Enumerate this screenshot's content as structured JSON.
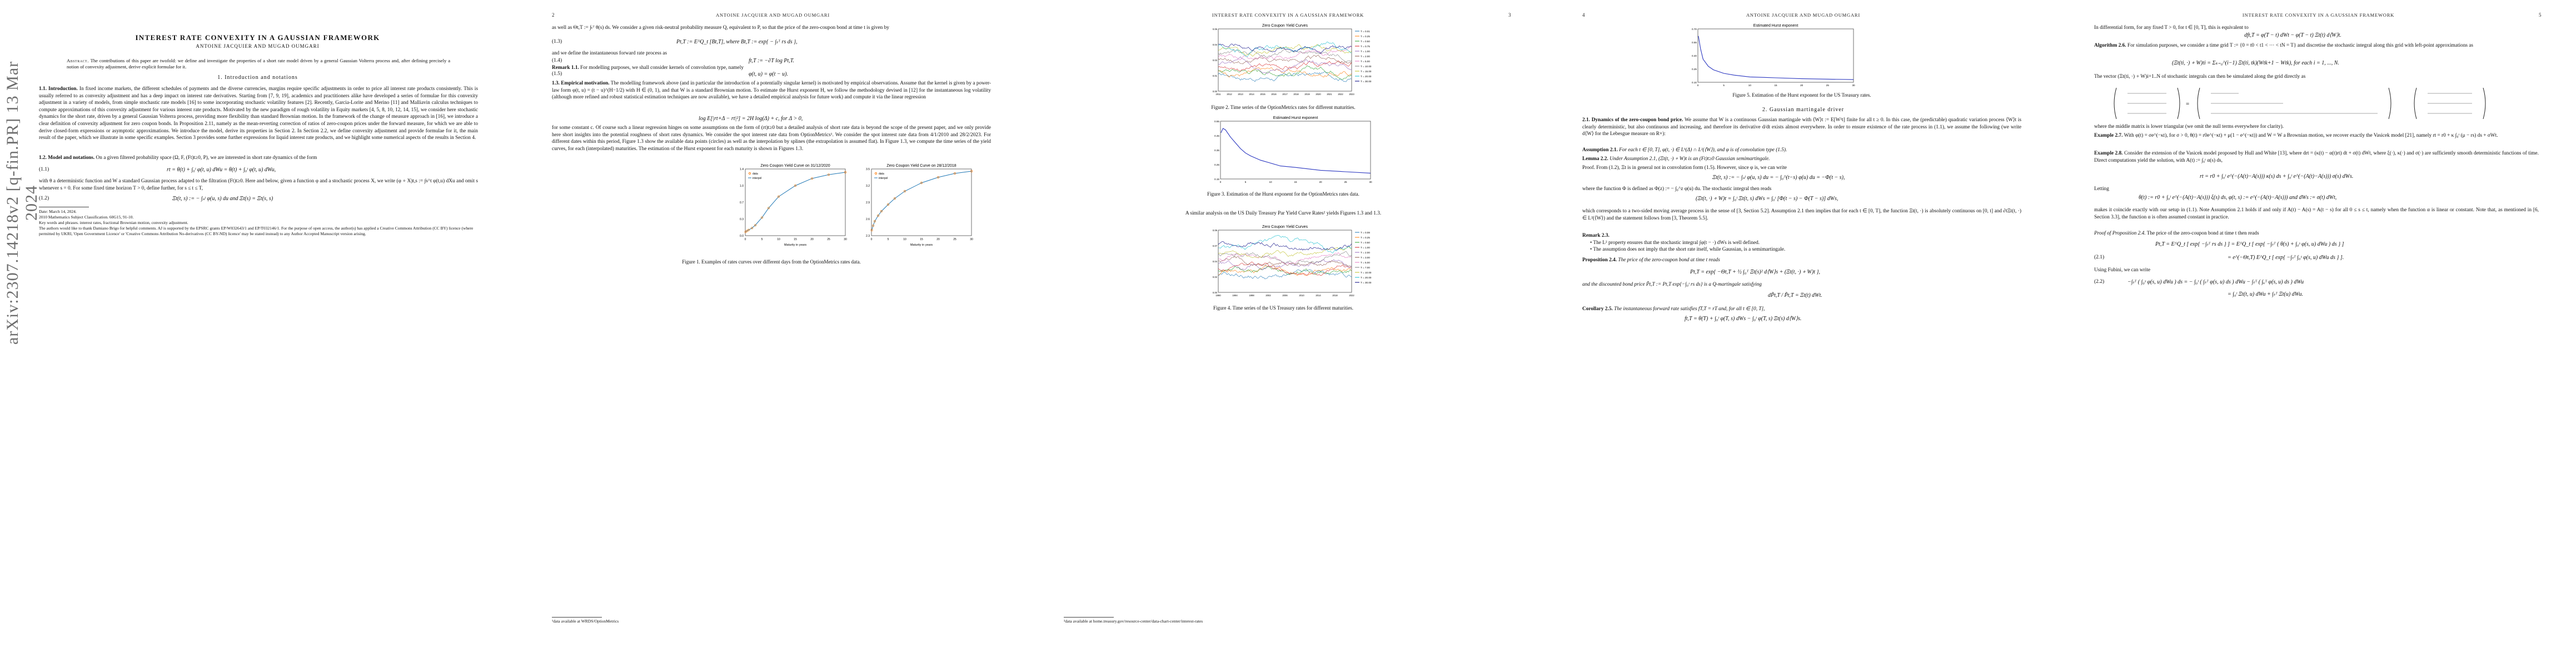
{
  "arxiv_id": "arXiv:2307.14218v2  [q-fin.PR]  13 Mar 2024",
  "running_head": {
    "even": "ANTOINE JACQUIER AND MUGAD OUMGARI",
    "odd": "INTEREST RATE CONVEXITY IN A GAUSSIAN FRAMEWORK"
  },
  "page_numbers": [
    "2",
    "3",
    "4",
    "5"
  ],
  "page1": {
    "title": "INTEREST RATE CONVEXITY IN A GAUSSIAN FRAMEWORK",
    "authors": "ANTOINE JACQUIER AND MUGAD OUMGARI",
    "abstract_label": "Abstract.",
    "abstract": "The contributions of this paper are twofold: we define and investigate the properties of a short rate model driven by a general Gaussian Volterra process and, after defining precisely a notion of convexity adjustment, derive explicit formulae for it.",
    "section1": "1. Introduction and notations",
    "intro_label": "1.1. Introduction.",
    "intro": "In fixed income markets, the different schedules of payments and the diverse currencies, margins require specific adjustments in order to price all interest rate products consistently. This is usually referred to as convexity adjustment and has a deep impact on interest rate derivatives. Starting from [7, 9, 19], academics and practitioners alike have developed a series of formulae for this convexity adjustment in a variety of models, from simple stochastic rate models [16] to some incorporating stochastic volatility features [2]. Recently, Garcia-Lorite and Merino [11] and Malliavin calculus techniques to compute approximations of this convexity adjustment for various interest rate products. Motivated by the new paradigm of rough volatility in Equity markets [4, 5, 8, 10, 12, 14, 15], we consider here stochastic dynamics for the short rate, driven by a general Gaussian Volterra process, providing more flexibility than standard Brownian motion. In the framework of the change of measure approach in [16], we introduce a clear definition of convexity adjustment for zero coupon bonds. In Proposition 2.11, namely as the mean-reverting correction of ratios of zero-coupon prices under the forward measure, for which we are able to derive closed-form expressions or asymptotic approximations. We introduce the model, derive its properties in Section 2. In Section 2.2, we define convexity adjustment and provide formulae for it, the main result of the paper, which we illustrate in some specific examples. Section 3 provides some further expressions for liquid interest rate products, and we highlight some numerical aspects of the results in Section 4.",
    "model_label": "1.2. Model and notations.",
    "model": "On a given filtered probability space (Ω, F, (Ft)t≥0, P), we are interested in short rate dynamics of the form",
    "eq_1_1": "rt = θ(t) + ∫₀ᵗ φ(t, u) dWu = θ(t) + ∫₀ᵗ φ(t, u) dWu,",
    "eq_1_1_num": "(1.1)",
    "model2": "with θ a deterministic function and W a standard Gaussian process adapted to the filtration (Ft)t≥0. Here and below, given a function φ and a stochastic process X, we write (φ ∘ X)t,s := ∫s^t φ(t,u) dXu and omit s whenever s = 0. For some fixed time horizon T > 0, define further, for s ≤ t ≤ T,",
    "eq_1_2": "Ξt(t, s) := − ∫ₛᵗ φ(u, s) du    and    Ξt(s) = Ξt(s, s)",
    "eq_1_2_num": "(1.2)",
    "footnote": "Date: March 14, 2024.\n2010 Mathematics Subject Classification. 60G15, 91-10.\nKey words and phrases. interest rates, fractional Brownian motion, convexity adjustment.\nThe authors would like to thank Damiano Brigo for helpful comments. AJ is supported by the EPSRC grants EP/W032643/1 and EP/T032146/1. For the purpose of open access, the author(s) has applied a Creative Commons Attribution (CC BY) licence (where permitted by UKRI, 'Open Government Licence' or 'Creative Commons Attribution No-derivatives (CC BY-ND) licence' may be stated instead) to any Author Accepted Manuscript version arising."
  },
  "page2": {
    "p1": "as well as Θt,T := ∫ₜᵀ θ(s) ds. We consider a given risk-neutral probability measure Q, equivalent to P, so that the price of the zero-coupon bond at time t is given by",
    "eq_1_3": "Pt,T := E^Q_t [Bt,T],    where    Bt,T := exp{ − ∫ₜᵀ rs ds },",
    "eq_1_3_num": "(1.3)",
    "p2": "and we define the instantaneous forward rate process as",
    "eq_1_4": "ft,T := −∂T log Pt,T.",
    "eq_1_4_num": "(1.4)",
    "remark_label": "Remark 1.1.",
    "remark": "For modelling purposes, we shall consider kernels of convolution type, namely",
    "eq_1_5": "φ(t, u) = φ(t − u).",
    "eq_1_5_num": "(1.5)",
    "emp_label": "1.3. Empirical motivation.",
    "emp": "The modelling framework above (and in particular the introduction of a potentially singular kernel) is motivated by empirical observations. Assume that the kernel is given by a power-law form φ(t, u) = (t − u)^(H−1/2) with H ∈ (0, 1), and that W is a standard Brownian motion. To estimate the Hurst exponent H, we follow the methodology devised in [12] for the instantaneous log volatility (although more refined and robust statistical estimation techniques are now available), we have a detailed empirical analysis for future work) and compute it via the linear regression",
    "eq_reg": "log E[|rt+Δ − rt|²] = 2H log(Δ) + c,    for Δ > 0,",
    "emp2": "for some constant c. Of course such a linear regression hinges on some assumptions on the form of (rt)t≥0 but a detailed analysis of short rate data is beyond the scope of the present paper, and we only provide here short insights into the potential roughness of short rates dynamics. We consider the spot interest rate data from OptionMetrics¹. We consider the spot interest rate data from 4/1/2010 and 28/2/2023. For different dates within this period, Figure 1.3 show the available data points (circles) as well as the interpolation by splines (the extrapolation is assumed flat). In Figure 1.3, we compute the time series of the yield curves, for each (interpolated) maturities. The estimation of the Hurst exponent for each maturity is shown in Figures 1.3.",
    "fig1_cap": "Figure 1. Examples of rates curves over different days from the OptionMetrics rates data.",
    "footnote": "¹data available at WRDS/OptionMetrics"
  },
  "page3": {
    "fig2_cap": "Figure 2. Time series of the OptionMetrics rates for different maturities.",
    "fig3_cap": "Figure 3. Estimation of the Hurst exponent for the OptionMetrics rates data.",
    "mid": "A similar analysis on the US Daily Treasury Par Yield Curve Rates² yields Figures 1.3 and 1.3.",
    "fig4_cap": "Figure 4. Time series of the US Treasury rates for different maturities.",
    "footnote": "²data available at home.treasury.gov/resource-center/data-chart-center/interest-rates"
  },
  "page4": {
    "fig5_cap": "Figure 5. Estimation of the Hurst exponent for the US Treasury rates.",
    "section2": "2. Gaussian martingale driver",
    "s21_label": "2.1. Dynamics of the zero-coupon bond price.",
    "s21": "We assume that W is a continuous Gaussian martingale with ⟨W⟩t := E[W²t] finite for all t ≥ 0. In this case, the (predictable) quadratic variation process ⟨W⟩t is clearly deterministic, but also continuous and increasing, and therefore its derivative d/dt exists almost everywhere. In order to ensure existence of the rate process in (1.1), we assume the following (we write d⟨W⟩ for the Lebesgue measure on R+):",
    "ass_label": "Assumption 2.1.",
    "ass": "For each t ∈ [0, T], φ(t, ·) ∈ L¹(Δ) ∩ L²(⟨W⟩), and φ is of convolution type (1.5).",
    "lem_label": "Lemma 2.2.",
    "lem": "Under Assumption 2.1, (Ξt(t, ·) ∘ W)t is an (Ft)t≥0 Gaussian semimartingale.",
    "proof": "Proof. From (1.2), Ξt is in general not in convolution form (1.5). However, since φ is, we can write",
    "eq_p4a": "Ξt(t, s) := − ∫ₛᵗ φ(u, s) du = − ∫₀^(t−s) φ(u) du = −Φ(t − s),",
    "p4b": "where the function Φ is defined as Φ(z) := − ∫₀^z φ(u) du. The stochastic integral then reads",
    "eq_p4b": "(Ξt(t, ·) ∘ W)t = ∫₀ᵗ Ξt(t, s) dWs = ∫₀ᵗ [Φ(t − s) − Φ(T − s)] dWs,",
    "p4c": "which corresponds to a two-sided moving average process in the sense of [3, Section 5.2]. Assumption 2.1 then implies that for each t ∈ [0, T], the function Ξt(t, ·) is absolutely continuous on [0, t] and ∂tΞt(t, ·) ∈ L²(⟨W⟩) and the statement follows from [3, Theorem 5.5].",
    "rem_label": "Remark 2.3.",
    "rem1": "The L² property ensures that the stochastic integral ∫φ(t − ·) dWs is well defined.",
    "rem2": "The assumption does not imply that the short rate itself, while Gaussian, is a semimartingale.",
    "prop_label": "Proposition 2.4.",
    "prop": "The price of the zero-coupon bond at time t reads",
    "eq_p4c": "Pt,T = exp{ −Θt,T + ½ ∫₀ᵀ Ξt(s)² d⟨W⟩s + (Ξt(t, ·) ∘ W)t },",
    "p4d": "and the discounted bond price P̃t,T := Pt,T exp{−∫₀ᵗ rs ds} is a Q-martingale satisfying",
    "eq_p4d": "dP̃t,T / P̃t,T = Ξt(t) dWt.",
    "cor_label": "Corollary 2.5.",
    "cor": "The instantaneous forward rate satisfies fT,T = rT and, for all t ∈ [0, T],",
    "eq_p4e": "ft,T = θ(T) + ∫₀ᵗ φ(T, s) dWs − ∫₀ᵗ φ(T, s) Ξt(s) d⟨W⟩s."
  },
  "page5": {
    "p1": "In differential form, for any fixed T > 0, for t ∈ [0, T], this is equivalent to",
    "eq1": "dft,T = φ(T − t) dWt − φ(T − t) Ξt(t) d⟨W⟩t.",
    "alg_label": "Algorithm 2.6.",
    "alg": "For simulation purposes, we consider a time grid T := {0 = t0 < t1 < ··· < tN = T} and discretise the stochastic integral along this grid with left-point approximations as",
    "eq2": "(Ξt(ti, ·) ∘ W)ti = Σₖ₌₀^(i−1) Ξt(ti, tk)(Wtk+1 − Wtk),    for each i = 1, ..., N.",
    "p2": "The vector (Ξt(ti, ·) ∘ W)i=1..N of stochastic integrals can then be simulated along the grid directly as",
    "matrix_note": "where the middle matrix is lower triangular (we omit the null terms everywhere for clarity).",
    "ex_label": "Example 2.7.",
    "ex": "With φ(t) = σe^(−κt), for σ > 0, θ(t) = r0e^(−κt) + μ(1 − e^(−κt)) and W = W a Brownian motion, we recover exactly the Vasicek model [21], namely rt = r0 + κ ∫₀ᵗ (μ − rs) ds + σWt.",
    "ex8_label": "Example 2.8.",
    "ex8": "Consider the extension of the Vasicek model proposed by Hull and White [13], where drt = (κ(t) − α(t)rt) dt + σ(t) dWt, where ξ(·), κ(·) and σ(·) are sufficiently smooth deterministic functions of time. Direct computations yield the solution, with A(t) := ∫₀ᵗ α(s) ds,",
    "eq3": "rt = r0 + ∫₀ᵗ e^(−(A(t)−A(s))) κ(s) ds + ∫₀ᵗ e^(−(A(t)−A(s))) σ(s) dWs.",
    "letting": "Letting",
    "eq4": "θ(t) := r0 + ∫₀ᵗ e^(−(A(t)−A(s))) ξ(s) ds,    φ(t, s) := e^(−(A(t)−A(s)))    and    dWs := σ(t) dWt,",
    "p3": "makes it coincide exactly with our setup in (1.1). Note Assumption 2.1 holds if and only if A(t) − A(s) = A(t − s) for all 0 ≤ s ≤ t, namely when the function α is linear or constant. Note that, as mentioned in [6, Section 3.3], the function α is often assumed constant in practice.",
    "proof_label": "Proof of Proposition 2.4.",
    "proof": "The price of the zero-coupon bond at time t then reads",
    "eq5": "Pt,T = E^Q_t [ exp{ −∫ₜᵀ rs ds } ] = E^Q_t [ exp{ −∫ₜᵀ ( θ(s) + ∫₀ˢ φ(s, u) dWu ) ds } ]",
    "eq5b": "= e^(−Θt,T) E^Q_t [ exp{ −∫ₜᵀ ∫₀ˢ φ(s, u) dWu ds } ].",
    "eq5_num": "(2.1)",
    "fubini": "Using Fubini, we can write",
    "eq6": "−∫ₜᵀ ( ∫₀ˢ φ(s, u) dWu ) ds = − ∫₀ᵗ ( ∫ₜᵀ φ(s, u) ds ) dWu − ∫ₜᵀ ( ∫ᵤᵀ φ(s, u) ds ) dWu",
    "eq6b": "= ∫₀ᵗ Ξt(t, u) dWu + ∫ₜᵀ Ξt(u) dWu.",
    "eq6_num": "(2.2)"
  },
  "chart_data": [
    {
      "id": "fig1-left",
      "type": "scatter",
      "title": "Zero Coupon Yield Curve on 31/12/2020",
      "xlabel": "Maturity in years",
      "ylabel": "",
      "legend": [
        "data",
        "interpol"
      ],
      "legend_position": "top-left",
      "xlim": [
        0,
        30
      ],
      "ylim": [
        0.0,
        1.4
      ],
      "x": [
        0.1,
        0.5,
        1,
        2,
        3,
        5,
        7,
        10,
        15,
        20,
        25,
        30
      ],
      "y": [
        0.08,
        0.1,
        0.12,
        0.16,
        0.22,
        0.38,
        0.58,
        0.82,
        1.05,
        1.2,
        1.28,
        1.33
      ]
    },
    {
      "id": "fig1-right",
      "type": "scatter",
      "title": "Zero Coupon Yield Curve on 28/12/2018",
      "xlabel": "Maturity in years",
      "ylabel": "",
      "legend": [
        "data",
        "interpol"
      ],
      "legend_position": "top-left",
      "xlim": [
        0,
        30
      ],
      "ylim": [
        2.3,
        3.5
      ],
      "x": [
        0.1,
        0.5,
        1,
        2,
        3,
        5,
        7,
        10,
        15,
        20,
        25,
        30
      ],
      "y": [
        2.4,
        2.48,
        2.56,
        2.66,
        2.74,
        2.86,
        2.97,
        3.1,
        3.25,
        3.35,
        3.42,
        3.46
      ]
    },
    {
      "id": "fig2",
      "type": "line",
      "title": "Zero Coupon Yield Curves",
      "xlabel": "",
      "ylabel": "",
      "legend_position": "right",
      "x_ticks": [
        "2011",
        "2012",
        "2013",
        "2014",
        "2015",
        "2016",
        "2017",
        "2018",
        "2019",
        "2020",
        "2021",
        "2022",
        "2023"
      ],
      "ylim": [
        0.0,
        0.06
      ],
      "series_names": [
        "T = 0.01",
        "T = 0.25",
        "T = 0.50",
        "T = 0.75",
        "T = 1.00",
        "T = 2.00",
        "T = 5.00",
        "T = 10.00",
        "T = 15.00",
        "T = 20.00",
        "T = 30.00"
      ]
    },
    {
      "id": "fig3",
      "type": "line",
      "title": "Estimated Hurst exponent",
      "xlabel": "",
      "ylabel": "",
      "x": [
        0.1,
        0.5,
        1,
        2,
        3,
        4,
        5,
        6,
        8,
        10,
        12,
        15,
        20,
        25,
        30
      ],
      "y": [
        0.47,
        0.5,
        0.49,
        0.44,
        0.4,
        0.36,
        0.33,
        0.31,
        0.28,
        0.26,
        0.24,
        0.23,
        0.21,
        0.2,
        0.19
      ],
      "xlim": [
        0,
        30
      ],
      "ylim": [
        0.15,
        0.55
      ]
    },
    {
      "id": "fig4",
      "type": "line",
      "title": "Zero Coupon Yield Curves",
      "legend_position": "right",
      "x_ticks": [
        "1990",
        "1994",
        "1998",
        "2002",
        "2006",
        "2010",
        "2014",
        "2018",
        "2022"
      ],
      "ylim": [
        0.0,
        0.09
      ],
      "series_names": [
        "T = 0.08",
        "T = 0.25",
        "T = 0.50",
        "T = 1.00",
        "T = 2.00",
        "T = 3.00",
        "T = 5.00",
        "T = 7.00",
        "T = 10.00",
        "T = 20.00",
        "T = 30.00"
      ]
    },
    {
      "id": "fig5",
      "type": "line",
      "title": "Estimated Hurst exponent",
      "x": [
        0.1,
        0.5,
        1,
        2,
        3,
        5,
        7,
        10,
        15,
        20,
        30
      ],
      "y": [
        0.62,
        0.48,
        0.36,
        0.28,
        0.24,
        0.2,
        0.18,
        0.16,
        0.15,
        0.14,
        0.13
      ],
      "xlim": [
        0,
        30
      ],
      "ylim": [
        0.1,
        0.7
      ]
    }
  ],
  "colors": {
    "line_palette": [
      "#1f77b4",
      "#ff7f0e",
      "#2ca02c",
      "#d62728",
      "#9467bd",
      "#8c564b",
      "#e377c2",
      "#7f7f7f",
      "#bcbd22",
      "#17becf",
      "#000080"
    ],
    "hurst_line": "#2a36c0"
  }
}
